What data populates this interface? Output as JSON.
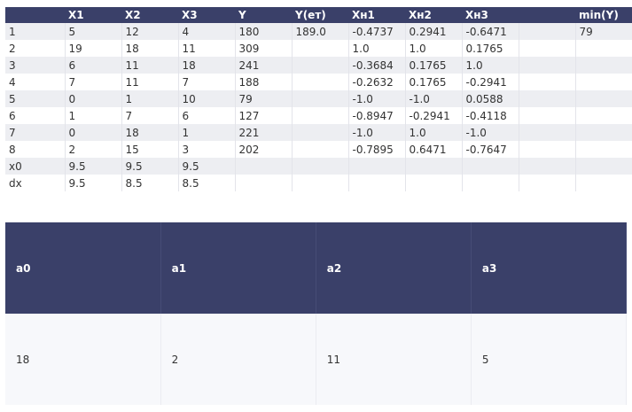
{
  "main_table": {
    "headers": [
      "",
      "X1",
      "X2",
      "X3",
      "Y",
      "Y(ет)",
      "Хн1",
      "Хн2",
      "Хн3",
      "",
      "min(Y)"
    ],
    "rows": [
      [
        "1",
        "5",
        "12",
        "4",
        "180",
        "189.0",
        "-0.4737",
        "0.2941",
        "-0.6471",
        "",
        "79"
      ],
      [
        "2",
        "19",
        "18",
        "11",
        "309",
        "",
        "1.0",
        "1.0",
        "0.1765",
        "",
        ""
      ],
      [
        "3",
        "6",
        "11",
        "18",
        "241",
        "",
        "-0.3684",
        "0.1765",
        "1.0",
        "",
        ""
      ],
      [
        "4",
        "7",
        "11",
        "7",
        "188",
        "",
        "-0.2632",
        "0.1765",
        "-0.2941",
        "",
        ""
      ],
      [
        "5",
        "0",
        "1",
        "10",
        "79",
        "",
        "-1.0",
        "-1.0",
        "0.0588",
        "",
        ""
      ],
      [
        "6",
        "1",
        "7",
        "6",
        "127",
        "",
        "-0.8947",
        "-0.2941",
        "-0.4118",
        "",
        ""
      ],
      [
        "7",
        "0",
        "18",
        "1",
        "221",
        "",
        "-1.0",
        "1.0",
        "-1.0",
        "",
        ""
      ],
      [
        "8",
        "2",
        "15",
        "3",
        "202",
        "",
        "-0.7895",
        "0.6471",
        "-0.7647",
        "",
        ""
      ],
      [
        "x0",
        "9.5",
        "9.5",
        "9.5",
        "",
        "",
        "",
        "",
        "",
        "",
        ""
      ],
      [
        "dx",
        "9.5",
        "8.5",
        "8.5",
        "",
        "",
        "",
        "",
        "",
        "",
        ""
      ]
    ]
  },
  "coef_table": {
    "headers": [
      "a0",
      "a1",
      "a2",
      "a3"
    ],
    "values": [
      "18",
      "2",
      "11",
      "5"
    ]
  }
}
